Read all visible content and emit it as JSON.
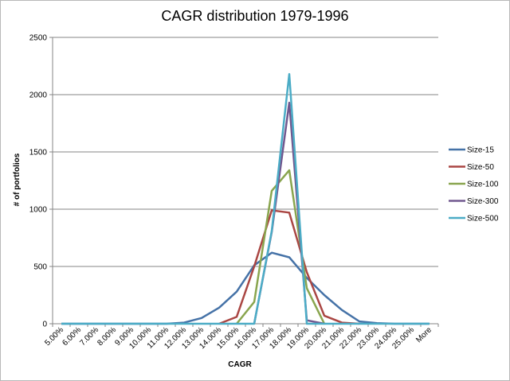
{
  "chart_data": {
    "type": "line",
    "title": "CAGR distribution 1979-1996",
    "xlabel": "CAGR",
    "ylabel": "# of portfolios",
    "categories": [
      "5.00%",
      "6.00%",
      "7.00%",
      "8.00%",
      "9.00%",
      "10.00%",
      "11.00%",
      "12.00%",
      "13.00%",
      "14.00%",
      "15.00%",
      "16.00%",
      "17.00%",
      "18.00%",
      "19.00%",
      "20.00%",
      "21.00%",
      "22.00%",
      "23.00%",
      "24.00%",
      "25.00%",
      "More"
    ],
    "ylim": [
      0,
      2500
    ],
    "yticks": [
      0,
      500,
      1000,
      1500,
      2000,
      2500
    ],
    "grid": true,
    "legend_position": "right",
    "series": [
      {
        "name": "Size-15",
        "color": "#4572A7",
        "values": [
          0,
          0,
          0,
          0,
          0,
          0,
          0,
          10,
          50,
          140,
          280,
          510,
          620,
          580,
          400,
          250,
          120,
          20,
          5,
          0,
          0,
          0
        ]
      },
      {
        "name": "Size-50",
        "color": "#AA4643",
        "values": [
          null,
          null,
          null,
          null,
          null,
          null,
          null,
          null,
          null,
          0,
          60,
          500,
          990,
          970,
          450,
          70,
          10,
          0,
          null,
          null,
          null,
          null
        ]
      },
      {
        "name": "Size-100",
        "color": "#89A54E",
        "values": [
          null,
          null,
          null,
          null,
          null,
          null,
          null,
          null,
          null,
          null,
          0,
          190,
          1160,
          1340,
          310,
          0,
          null,
          null,
          null,
          null,
          null,
          null
        ]
      },
      {
        "name": "Size-300",
        "color": "#71588F",
        "values": [
          null,
          null,
          null,
          null,
          null,
          null,
          null,
          null,
          null,
          null,
          null,
          0,
          800,
          1930,
          30,
          0,
          null,
          null,
          null,
          null,
          null,
          null
        ]
      },
      {
        "name": "Size-500",
        "color": "#4BACC6",
        "values": [
          0,
          0,
          0,
          0,
          0,
          0,
          0,
          0,
          0,
          0,
          0,
          0,
          810,
          2180,
          0,
          0,
          0,
          0,
          0,
          0,
          0,
          0
        ]
      }
    ]
  }
}
